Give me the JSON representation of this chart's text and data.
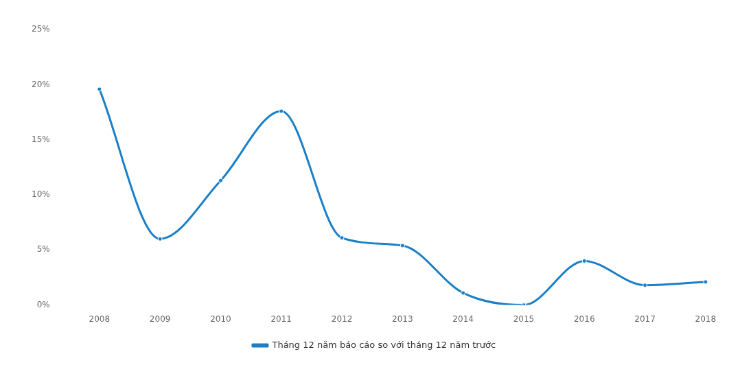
{
  "chart_data": {
    "type": "line",
    "categories": [
      "2008",
      "2009",
      "2010",
      "2011",
      "2012",
      "2013",
      "2014",
      "2015",
      "2016",
      "2017",
      "2018"
    ],
    "series": [
      {
        "name": "Tháng 12 năm báo cáo so với tháng 12 năm trước",
        "color": "#1a7fc7",
        "values": [
          19.6,
          6.0,
          11.3,
          17.6,
          6.1,
          5.4,
          1.1,
          0,
          4.0,
          1.8,
          2.1
        ]
      }
    ],
    "ylim": [
      0,
      25
    ],
    "yticks": [
      {
        "value": 0,
        "label": "0%"
      },
      {
        "value": 5,
        "label": "5%"
      },
      {
        "value": 10,
        "label": "10%"
      },
      {
        "value": 15,
        "label": "15%"
      },
      {
        "value": 20,
        "label": "20%"
      },
      {
        "value": 25,
        "label": "25%"
      }
    ],
    "grid": false,
    "legend": "bottom",
    "marker": "circle",
    "line_style": "solid"
  }
}
